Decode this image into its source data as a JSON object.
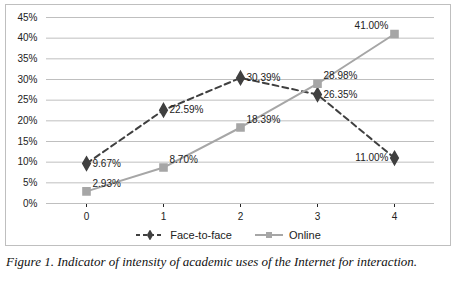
{
  "chart_data": {
    "type": "line",
    "caption": "Figure 1. Indicator of intensity of academic uses of the Internet for interaction.",
    "categories": [
      "0",
      "1",
      "2",
      "3",
      "4"
    ],
    "series": [
      {
        "name": "Face-to-face",
        "color": "#404040",
        "marker": "diamond",
        "line_style": "dashed",
        "values": [
          9.67,
          22.59,
          30.39,
          26.35,
          11.0
        ],
        "value_labels": [
          "9.67%",
          "22.59%",
          "30.39%",
          "26.35%",
          "11.00%"
        ]
      },
      {
        "name": "Online",
        "color": "#a6a6a6",
        "marker": "square",
        "line_style": "solid",
        "values": [
          2.93,
          8.7,
          18.39,
          28.98,
          41.0
        ],
        "value_labels": [
          "2.93%",
          "8.70%",
          "18.39%",
          "28.98%",
          "41.00%"
        ]
      }
    ],
    "ylim": [
      0,
      45
    ],
    "yticks": [
      {
        "value": 0,
        "label": "0%"
      },
      {
        "value": 5,
        "label": "5%"
      },
      {
        "value": 10,
        "label": "10%"
      },
      {
        "value": 15,
        "label": "15%"
      },
      {
        "value": 20,
        "label": "20%"
      },
      {
        "value": 25,
        "label": "25%"
      },
      {
        "value": 30,
        "label": "30%"
      },
      {
        "value": 35,
        "label": "35%"
      },
      {
        "value": 40,
        "label": "40%"
      },
      {
        "value": 45,
        "label": "45%"
      }
    ],
    "grid": true,
    "legend": "bottom",
    "data_labels": true
  }
}
